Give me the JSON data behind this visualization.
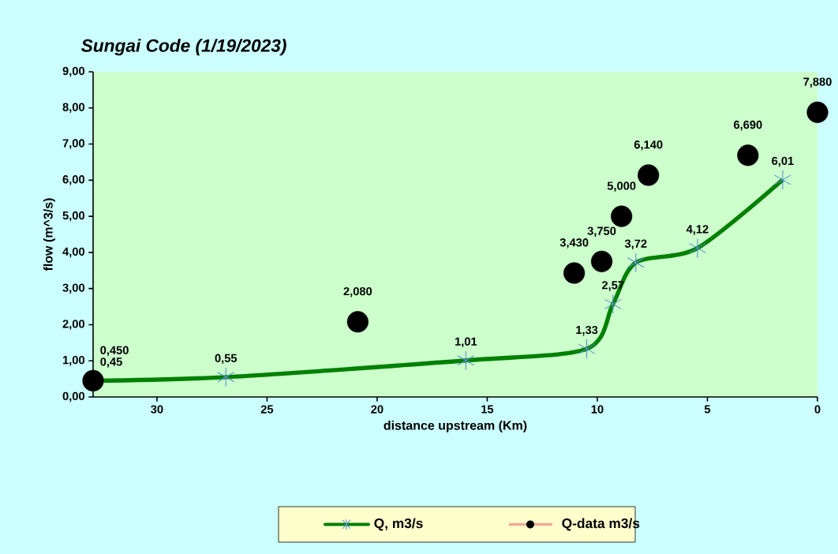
{
  "chart_data": {
    "type": "line",
    "title": "Sungai Code (1/19/2023)",
    "xlabel": "distance upstream (Km)",
    "ylabel": "flow (m^3/s)",
    "xlim": [
      32.9,
      0
    ],
    "xticks": [
      30,
      25,
      20,
      15,
      10,
      5,
      0
    ],
    "ylim": [
      0,
      9
    ],
    "yticks": [
      {
        "value": 0,
        "label": "0,00"
      },
      {
        "value": 1,
        "label": "1,00"
      },
      {
        "value": 2,
        "label": "2,00"
      },
      {
        "value": 3,
        "label": "3,00"
      },
      {
        "value": 4,
        "label": "4,00"
      },
      {
        "value": 5,
        "label": "5,00"
      },
      {
        "value": 6,
        "label": "6,00"
      },
      {
        "value": 7,
        "label": "7,00"
      },
      {
        "value": 8,
        "label": "8,00"
      },
      {
        "value": 9,
        "label": "9,00"
      }
    ],
    "legend": "bottom",
    "grid": false,
    "series": [
      {
        "name": "Q, m3/s",
        "color": "#008000",
        "marker": "cross",
        "x": [
          32.9,
          26.87,
          15.97,
          10.48,
          9.29,
          8.25,
          5.45,
          1.58
        ],
        "values": [
          0.45,
          0.55,
          1.01,
          1.33,
          2.57,
          3.72,
          4.12,
          6.01
        ],
        "value_labels": [
          "0,45",
          "0,55",
          "1,01",
          "1,33",
          "2,57",
          "3,72",
          "4,12",
          "6,01"
        ]
      },
      {
        "name": "Q-data m3/s",
        "type": "scatter",
        "color": "#000000",
        "marker": "circle",
        "x": [
          32.9,
          20.88,
          11.05,
          9.8,
          8.9,
          7.68,
          3.16,
          0
        ],
        "values": [
          0.45,
          2.08,
          3.43,
          3.75,
          5.0,
          6.14,
          6.69,
          7.88
        ],
        "value_labels": [
          "0,450",
          "2,080",
          "3,430",
          "3,750",
          "5,000",
          "6,140",
          "6,690",
          "7,880"
        ]
      }
    ]
  }
}
